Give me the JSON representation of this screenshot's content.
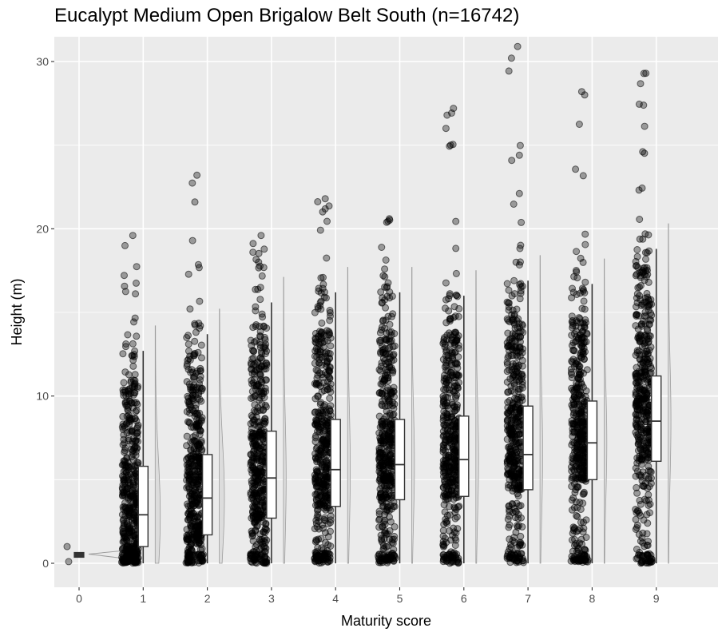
{
  "chart_data": {
    "type": "boxplot",
    "title": "Eucalypt Medium Open Brigalow Belt South (n=16742)",
    "xlabel": "Maturity score",
    "ylabel": "Height (m)",
    "xlim": [
      -0.4,
      9.9
    ],
    "ylim": [
      -1.5,
      31.5
    ],
    "x_ticks": [
      "0",
      "1",
      "2",
      "3",
      "4",
      "5",
      "6",
      "7",
      "8",
      "9"
    ],
    "y_ticks": [
      0,
      10,
      20,
      30
    ],
    "y_tick_labels": [
      "0",
      "10",
      "20",
      "30"
    ],
    "grid": true,
    "colors": {
      "panel": "#ebebeb",
      "grid": "#ffffff",
      "points": "#000000",
      "box_fill": "#ffffff",
      "box_line": "#333333",
      "violin": "#9e9e9e"
    },
    "boxes": [
      {
        "x": 0,
        "whisker_low": 0.4,
        "q1": 0.45,
        "median": 0.5,
        "q3": 0.55,
        "whisker_high": 0.6,
        "point_max": 1.0
      },
      {
        "x": 1,
        "whisker_low": 0.0,
        "q1": 1.0,
        "median": 2.9,
        "q3": 5.8,
        "whisker_high": 12.7,
        "point_max": 19.6
      },
      {
        "x": 2,
        "whisker_low": 0.0,
        "q1": 1.7,
        "median": 3.9,
        "q3": 6.5,
        "whisker_high": 13.7,
        "point_max": 23.2
      },
      {
        "x": 3,
        "whisker_low": 0.0,
        "q1": 2.7,
        "median": 5.1,
        "q3": 7.9,
        "whisker_high": 15.6,
        "point_max": 19.6
      },
      {
        "x": 4,
        "whisker_low": 0.0,
        "q1": 3.4,
        "median": 5.6,
        "q3": 8.6,
        "whisker_high": 16.2,
        "point_max": 21.8
      },
      {
        "x": 5,
        "whisker_low": 0.0,
        "q1": 3.8,
        "median": 5.9,
        "q3": 8.6,
        "whisker_high": 16.2,
        "point_max": 20.6
      },
      {
        "x": 6,
        "whisker_low": 0.0,
        "q1": 4.0,
        "median": 6.2,
        "q3": 8.8,
        "whisker_high": 16.0,
        "point_max": 27.2
      },
      {
        "x": 7,
        "whisker_low": 0.0,
        "q1": 4.4,
        "median": 6.5,
        "q3": 9.4,
        "whisker_high": 16.9,
        "point_max": 30.9
      },
      {
        "x": 8,
        "whisker_low": 0.0,
        "q1": 5.0,
        "median": 7.2,
        "q3": 9.7,
        "whisker_high": 16.7,
        "point_max": 28.2
      },
      {
        "x": 9,
        "whisker_low": 0.0,
        "q1": 6.1,
        "median": 8.5,
        "q3": 11.2,
        "whisker_high": 18.8,
        "point_max": 29.3
      }
    ]
  }
}
